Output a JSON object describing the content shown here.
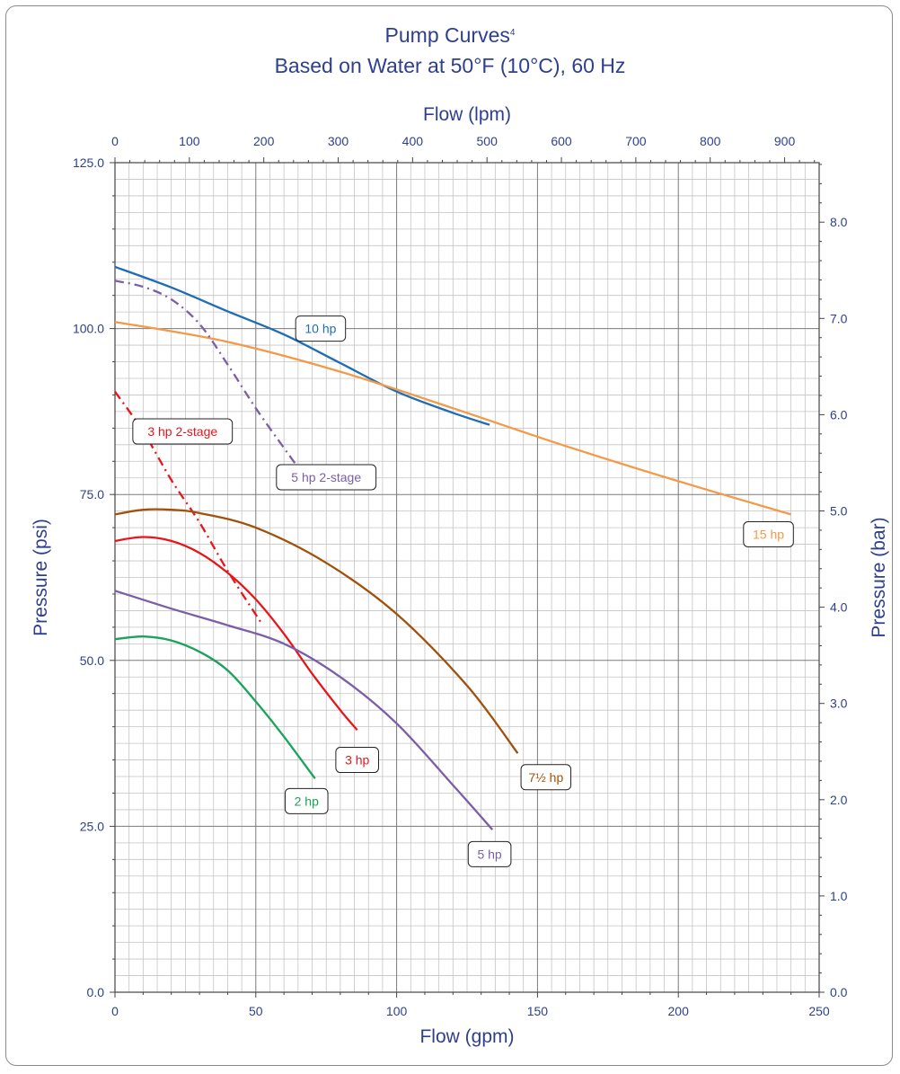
{
  "chart_data": {
    "type": "line",
    "title": "Pump Curves",
    "title_superscript": "4",
    "subtitle": "Based on Water at 50°F (10°C), 60 Hz",
    "xlabel": "Flow (gpm)",
    "x2label": "Flow (lpm)",
    "ylabel": "Pressure (psi)",
    "y2label": "Pressure (bar)",
    "xlim": [
      0,
      250
    ],
    "ylim": [
      0,
      125
    ],
    "x2lim": [
      0,
      946.4
    ],
    "y2lim": [
      0,
      8.618
    ],
    "grid": true,
    "x_ticks": [
      "0",
      "50",
      "100",
      "150",
      "200",
      "250"
    ],
    "x2_ticks": [
      "0",
      "100",
      "200",
      "300",
      "400",
      "500",
      "600",
      "700",
      "800",
      "900"
    ],
    "y_ticks": [
      "0.0",
      "25.0",
      "50.0",
      "75.0",
      "100.0",
      "125.0"
    ],
    "y2_ticks": [
      "0.0",
      "1.0",
      "2.0",
      "3.0",
      "4.0",
      "5.0",
      "6.0",
      "7.0",
      "8.0"
    ],
    "series": [
      {
        "name": "10 hp",
        "color": "#1f6db5",
        "dash": "solid",
        "x": [
          0,
          20,
          40,
          60,
          80,
          100,
          120,
          133
        ],
        "y": [
          109.3,
          106.2,
          102.6,
          99.1,
          94.8,
          90.5,
          87.3,
          85.5
        ],
        "label_at": [
          73,
          100
        ]
      },
      {
        "name": "15 hp",
        "color": "#f39a48",
        "dash": "solid",
        "x": [
          0,
          40,
          80,
          120,
          160,
          200,
          240
        ],
        "y": [
          101,
          98,
          93.5,
          88,
          82.3,
          77,
          72
        ],
        "label_at": [
          232,
          69
        ]
      },
      {
        "name": "5 hp 2-stage",
        "color": "#7b5ea7",
        "dash": "dashdot",
        "x": [
          0,
          10,
          20,
          30,
          40,
          50,
          60,
          66
        ],
        "y": [
          107.2,
          106.3,
          104.4,
          100.7,
          94.6,
          88,
          82,
          78.5
        ],
        "label_at": [
          75,
          77.6
        ]
      },
      {
        "name": "3 hp 2-stage",
        "color": "#e8161b",
        "dash": "dashdot",
        "x": [
          0,
          10,
          20,
          30,
          40,
          52
        ],
        "y": [
          90.5,
          84.5,
          77.2,
          70.8,
          63.5,
          55.6
        ],
        "label_at": [
          24,
          84.5
        ]
      },
      {
        "name": "7½ hp",
        "color": "#a0520d",
        "dash": "solid",
        "x": [
          0,
          10,
          20,
          30,
          50,
          75,
          100,
          125,
          143
        ],
        "y": [
          72,
          72.7,
          72.7,
          72.2,
          70,
          64.7,
          57,
          46.2,
          36
        ],
        "label_at": [
          153,
          32.4
        ]
      },
      {
        "name": "3 hp",
        "color": "#e8161b",
        "dash": "solid",
        "x": [
          0,
          10,
          20,
          30,
          40,
          50,
          60,
          70,
          80,
          86
        ],
        "y": [
          68,
          68.6,
          68,
          66.2,
          63.2,
          59.2,
          54,
          48,
          42.5,
          39.5
        ],
        "label_at": [
          86,
          35
        ]
      },
      {
        "name": "5 hp",
        "color": "#7b5ea7",
        "dash": "solid",
        "x": [
          0,
          20,
          40,
          60,
          80,
          100,
          120,
          134
        ],
        "y": [
          60.5,
          57.8,
          55.3,
          52.5,
          47.5,
          40.5,
          31.2,
          24.5
        ],
        "label_at": [
          133,
          20.8
        ]
      },
      {
        "name": "2 hp",
        "color": "#1aa35a",
        "dash": "solid",
        "x": [
          0,
          10,
          20,
          30,
          40,
          50,
          60,
          71
        ],
        "y": [
          53.2,
          53.6,
          53,
          51.3,
          48.5,
          43.8,
          38.5,
          32.2
        ],
        "label_at": [
          68,
          28.8
        ]
      }
    ]
  }
}
